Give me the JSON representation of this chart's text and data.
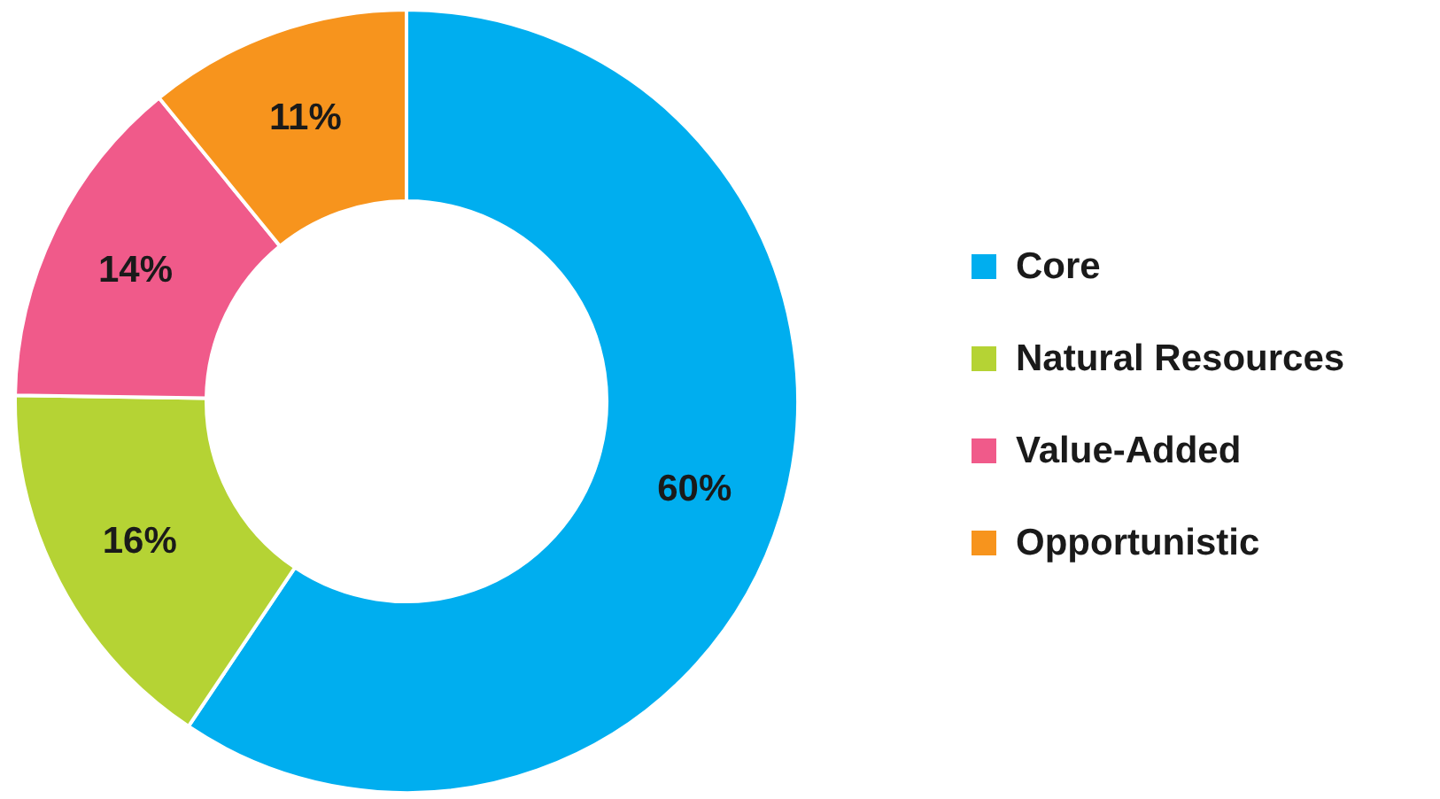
{
  "chart_data": {
    "type": "donut",
    "categories": [
      "Core",
      "Natural Resources",
      "Value-Added",
      "Opportunistic"
    ],
    "values": [
      60,
      16,
      14,
      11
    ],
    "value_labels": [
      "60%",
      "16%",
      "14%",
      "11%"
    ],
    "colors": [
      "#00aeef",
      "#b5d334",
      "#f05a8a",
      "#f7941d"
    ],
    "legend": "right"
  }
}
